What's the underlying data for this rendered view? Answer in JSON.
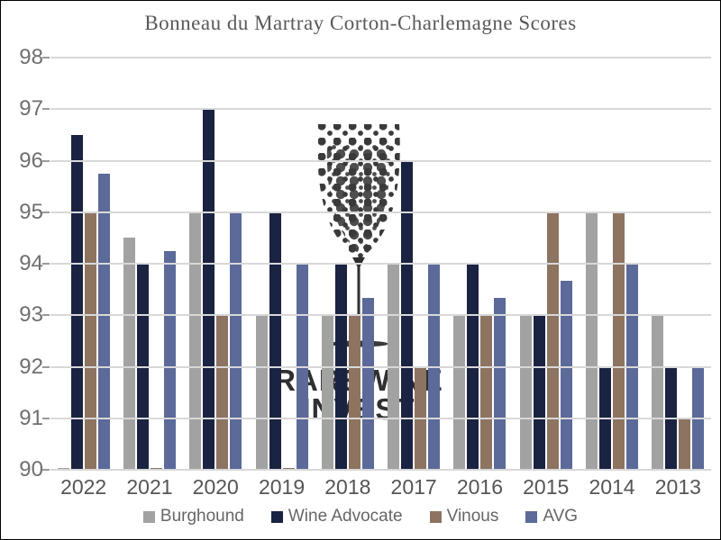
{
  "title": "Bonneau du Martray Corton-Charlemagne Scores",
  "watermark": {
    "icon": "wine-glass-dots",
    "line1": "RAREWINE",
    "line2": "INVEST",
    "color": "#3a3a3a"
  },
  "axes": {
    "y_tick_labels": [
      "98",
      "97",
      "96",
      "95",
      "94",
      "93",
      "92",
      "91",
      "90"
    ],
    "x_tick_labels": [
      "2022",
      "2021",
      "2020",
      "2019",
      "2018",
      "2017",
      "2016",
      "2015",
      "2014",
      "2013"
    ]
  },
  "colors": {
    "background": "#ffffff",
    "gridline": "#d8d8d8",
    "tick": "#9a9a9a",
    "title_text": "#595959",
    "axis_text": "#6f6f6f",
    "legend_text": "#666666"
  },
  "chart_data": {
    "type": "bar",
    "title": "Bonneau du Martray Corton-Charlemagne Scores",
    "categories": [
      "2022",
      "2021",
      "2020",
      "2019",
      "2018",
      "2017",
      "2016",
      "2015",
      "2014",
      "2013"
    ],
    "series": [
      {
        "name": "Burghound",
        "color": "#a2a2a2",
        "values": [
          null,
          94.5,
          95,
          93,
          93,
          94,
          93,
          93,
          95,
          93
        ]
      },
      {
        "name": "Wine Advocate",
        "color": "#1b2342",
        "values": [
          96.5,
          94,
          97,
          95,
          94,
          96,
          94,
          93,
          92,
          92
        ]
      },
      {
        "name": "Vinous",
        "color": "#8d7461",
        "values": [
          95,
          null,
          93,
          null,
          93,
          92,
          93,
          95,
          95,
          91
        ]
      },
      {
        "name": "AVG",
        "color": "#5b6a99",
        "values": [
          95.75,
          94.25,
          95,
          94,
          93.33,
          94,
          93.33,
          93.67,
          94,
          92
        ]
      }
    ],
    "xlabel": "",
    "ylabel": "",
    "ylim": [
      90,
      98
    ],
    "yticks": [
      90,
      91,
      92,
      93,
      94,
      95,
      96,
      97,
      98
    ],
    "grid": true,
    "gridlines_over_bars": true,
    "legend_position": "bottom"
  }
}
